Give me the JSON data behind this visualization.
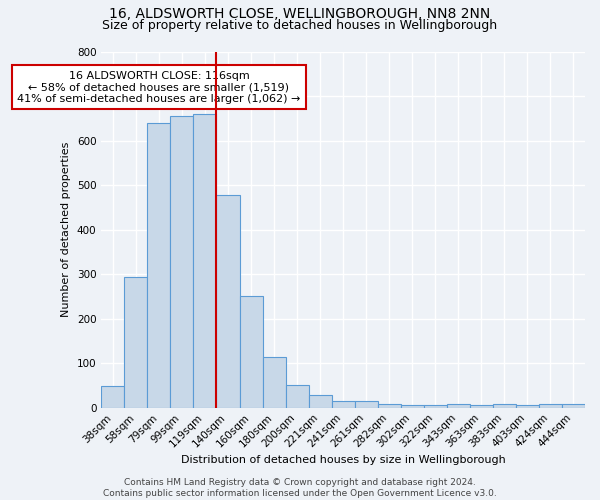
{
  "title1": "16, ALDSWORTH CLOSE, WELLINGBOROUGH, NN8 2NN",
  "title2": "Size of property relative to detached houses in Wellingborough",
  "xlabel": "Distribution of detached houses by size in Wellingborough",
  "ylabel": "Number of detached properties",
  "categories": [
    "38sqm",
    "58sqm",
    "79sqm",
    "99sqm",
    "119sqm",
    "140sqm",
    "160sqm",
    "180sqm",
    "200sqm",
    "221sqm",
    "241sqm",
    "261sqm",
    "282sqm",
    "302sqm",
    "322sqm",
    "343sqm",
    "363sqm",
    "383sqm",
    "403sqm",
    "424sqm",
    "444sqm"
  ],
  "values": [
    48,
    293,
    640,
    655,
    660,
    478,
    252,
    113,
    52,
    28,
    15,
    15,
    8,
    7,
    6,
    8,
    6,
    8,
    6,
    8,
    8
  ],
  "bar_color": "#c8d8e8",
  "bar_edge_color": "#5b9bd5",
  "vline_x_index": 4,
  "vline_color": "#cc0000",
  "annotation_text": "16 ALDSWORTH CLOSE: 116sqm\n← 58% of detached houses are smaller (1,519)\n41% of semi-detached houses are larger (1,062) →",
  "annotation_box_color": "#ffffff",
  "annotation_box_edge": "#cc0000",
  "ylim": [
    0,
    800
  ],
  "yticks": [
    0,
    100,
    200,
    300,
    400,
    500,
    600,
    700,
    800
  ],
  "footer": "Contains HM Land Registry data © Crown copyright and database right 2024.\nContains public sector information licensed under the Open Government Licence v3.0.",
  "bg_color": "#eef2f7",
  "grid_color": "#ffffff",
  "title1_fontsize": 10,
  "title2_fontsize": 9,
  "annotation_fontsize": 8,
  "ylabel_fontsize": 8,
  "xlabel_fontsize": 8,
  "tick_fontsize": 7.5,
  "footer_fontsize": 6.5
}
